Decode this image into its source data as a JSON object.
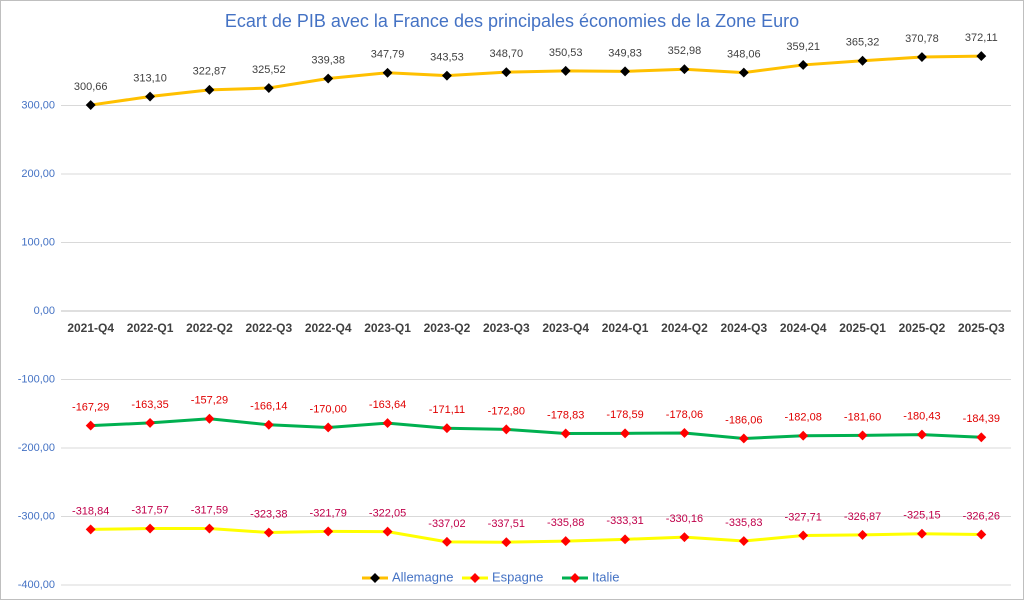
{
  "chart_data": {
    "type": "line",
    "title": "Ecart de PIB avec la France des principales économies de la Zone Euro",
    "categories": [
      "2021-Q4",
      "2022-Q1",
      "2022-Q2",
      "2022-Q3",
      "2022-Q4",
      "2023-Q1",
      "2023-Q2",
      "2023-Q3",
      "2023-Q4",
      "2024-Q1",
      "2024-Q2",
      "2024-Q3",
      "2024-Q4",
      "2025-Q1",
      "2025-Q2",
      "2025-Q3"
    ],
    "series": [
      {
        "name": "Allemagne",
        "color": "#ffc000",
        "marker_color": "#000000",
        "label_color": "#404040",
        "values": [
          300.66,
          313.1,
          322.87,
          325.52,
          339.38,
          347.79,
          343.53,
          348.7,
          350.53,
          349.83,
          352.98,
          348.06,
          359.21,
          365.32,
          370.78,
          372.11
        ],
        "value_labels": [
          "300,66",
          "313,10",
          "322,87",
          "325,52",
          "339,38",
          "347,79",
          "343,53",
          "348,70",
          "350,53",
          "349,83",
          "352,98",
          "348,06",
          "359,21",
          "365,32",
          "370,78",
          "372,11"
        ]
      },
      {
        "name": "Espagne",
        "color": "#ffff00",
        "marker_color": "#ff0000",
        "label_color": "#c0004a",
        "values": [
          -318.84,
          -317.57,
          -317.59,
          -323.38,
          -321.79,
          -322.05,
          -337.02,
          -337.51,
          -335.88,
          -333.31,
          -330.16,
          -335.83,
          -327.71,
          -326.87,
          -325.15,
          -326.26
        ],
        "value_labels": [
          "-318,84",
          "-317,57",
          "-317,59",
          "-323,38",
          "-321,79",
          "-322,05",
          "-337,02",
          "-337,51",
          "-335,88",
          "-333,31",
          "-330,16",
          "-335,83",
          "-327,71",
          "-326,87",
          "-325,15",
          "-326,26"
        ]
      },
      {
        "name": "Italie",
        "color": "#00b050",
        "marker_color": "#ff0000",
        "label_color": "#e00000",
        "values": [
          -167.29,
          -163.35,
          -157.29,
          -166.14,
          -170.0,
          -163.64,
          -171.11,
          -172.8,
          -178.83,
          -178.59,
          -178.06,
          -186.06,
          -182.08,
          -181.6,
          -180.43,
          -184.39
        ],
        "value_labels": [
          "-167,29",
          "-163,35",
          "-157,29",
          "-166,14",
          "-170,00",
          "-163,64",
          "-171,11",
          "-172,80",
          "-178,83",
          "-178,59",
          "-178,06",
          "-186,06",
          "-182,08",
          "-181,60",
          "-180,43",
          "-184,39"
        ]
      }
    ],
    "ylim": [
      -400,
      400
    ],
    "yticks": [
      {
        "value": -400,
        "label": "-400,00"
      },
      {
        "value": -300,
        "label": "-300,00"
      },
      {
        "value": -200,
        "label": "-200,00"
      },
      {
        "value": -100,
        "label": "-100,00"
      },
      {
        "value": 0,
        "label": "0,00"
      },
      {
        "value": 100,
        "label": "100,00"
      },
      {
        "value": 200,
        "label": "200,00"
      },
      {
        "value": 300,
        "label": "300,00"
      }
    ],
    "grid": true,
    "legend": "bottom"
  }
}
